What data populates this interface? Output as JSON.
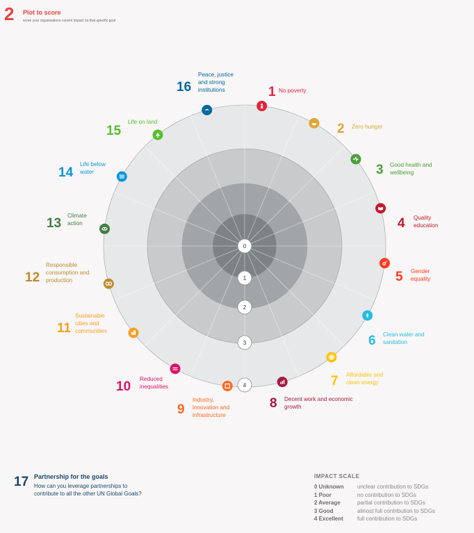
{
  "header": {
    "step_number": "2",
    "title": "Plot to score",
    "subtitle": "score your organisations current impact on that specific goal"
  },
  "rings": [
    "0",
    "1",
    "2",
    "3",
    "4"
  ],
  "goals": [
    {
      "number": "1",
      "label": "No poverty",
      "color": "#e5243b",
      "icon": "family-icon"
    },
    {
      "number": "2",
      "label": "Zero hunger",
      "color": "#dda63a",
      "icon": "bowl-icon"
    },
    {
      "number": "3",
      "label": "Good health and wellbeing",
      "color": "#4c9f38",
      "icon": "heartbeat-icon"
    },
    {
      "number": "4",
      "label": "Quality education",
      "color": "#c5192d",
      "icon": "book-icon"
    },
    {
      "number": "5",
      "label": "Gender equality",
      "color": "#ff3a21",
      "icon": "gender-icon"
    },
    {
      "number": "6",
      "label": "Clean water and sanitation",
      "color": "#26bde2",
      "icon": "water-drop-icon"
    },
    {
      "number": "7",
      "label": "Affordable and clean energy",
      "color": "#fcc30b",
      "icon": "sun-icon"
    },
    {
      "number": "8",
      "label": "Decent work and economic growth",
      "color": "#a21942",
      "icon": "chart-icon"
    },
    {
      "number": "9",
      "label": "Industry, innovation and infrastructure",
      "color": "#fd6925",
      "icon": "cubes-icon"
    },
    {
      "number": "10",
      "label": "Reduced inequalities",
      "color": "#dd1367",
      "icon": "equal-icon"
    },
    {
      "number": "11",
      "label": "Sustainable cities and communities",
      "color": "#fd9d24",
      "icon": "buildings-icon"
    },
    {
      "number": "12",
      "label": "Responsible consumption and production",
      "color": "#bf8b2e",
      "icon": "infinity-icon"
    },
    {
      "number": "13",
      "label": "Climate action",
      "color": "#3f7e44",
      "icon": "eye-globe-icon"
    },
    {
      "number": "14",
      "label": "Life below water",
      "color": "#0a97d9",
      "icon": "fish-icon"
    },
    {
      "number": "15",
      "label": "Life on land",
      "color": "#56c02b",
      "icon": "tree-icon"
    },
    {
      "number": "16",
      "label": "Peace, justice and strong institutions",
      "color": "#00689d",
      "icon": "dove-icon"
    }
  ],
  "goal17": {
    "number": "17",
    "title": "Partnership for the goals",
    "text": "How can you leverage partnerships to contribute to all the other UN Global Goals?",
    "color": "#19486a"
  },
  "impact_scale": {
    "title": "IMPACT SCALE",
    "levels": [
      {
        "level": "0 Unknown",
        "desc": "unclear contribution to SDGs"
      },
      {
        "level": "1 Poor",
        "desc": "no contribution to SDGs"
      },
      {
        "level": "2 Average",
        "desc": "partial contribution to SDGs"
      },
      {
        "level": "3 Good",
        "desc": "almost full contribution to SDGs"
      },
      {
        "level": "4 Excellent",
        "desc": "full contribution to SDGs"
      }
    ]
  }
}
